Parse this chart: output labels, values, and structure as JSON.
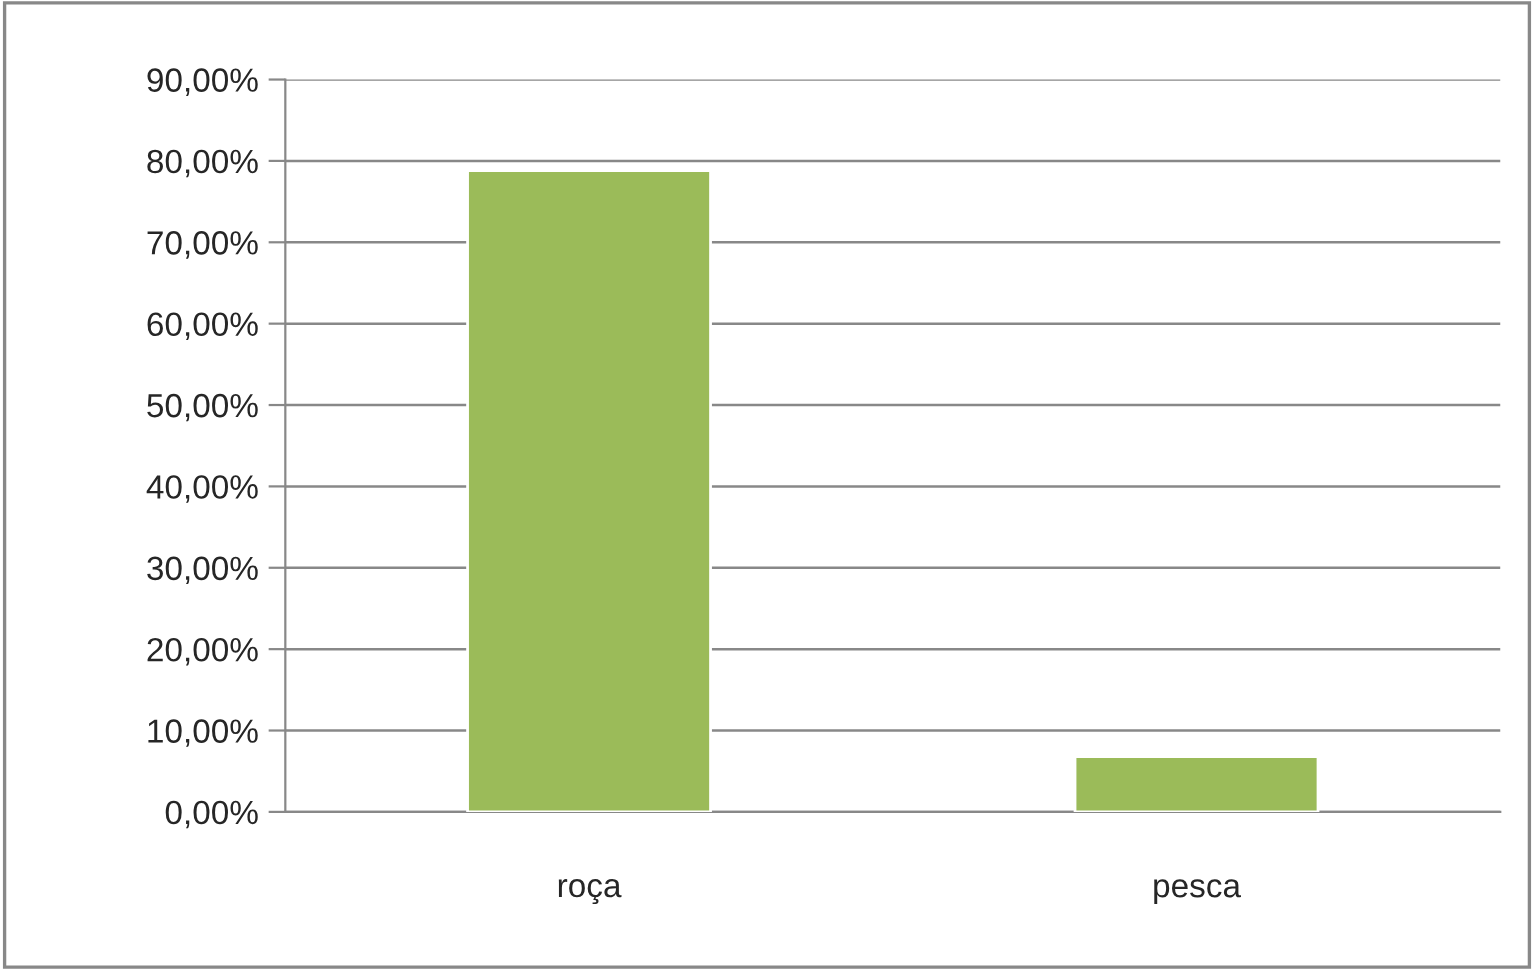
{
  "chart_data": {
    "type": "bar",
    "categories": [
      "roça",
      "pesca"
    ],
    "values": [
      78.8,
      6.8
    ],
    "color": "#9bbb59",
    "ylim": [
      0,
      90
    ],
    "yticks": [
      {
        "value": 0,
        "label": "0,00%"
      },
      {
        "value": 10,
        "label": "10,00%"
      },
      {
        "value": 20,
        "label": "20,00%"
      },
      {
        "value": 30,
        "label": "30,00%"
      },
      {
        "value": 40,
        "label": "40,00%"
      },
      {
        "value": 50,
        "label": "50,00%"
      },
      {
        "value": 60,
        "label": "60,00%"
      },
      {
        "value": 70,
        "label": "70,00%"
      },
      {
        "value": 80,
        "label": "80,00%"
      },
      {
        "value": 90,
        "label": "90,00%"
      }
    ],
    "grid": "y",
    "legend": false
  }
}
